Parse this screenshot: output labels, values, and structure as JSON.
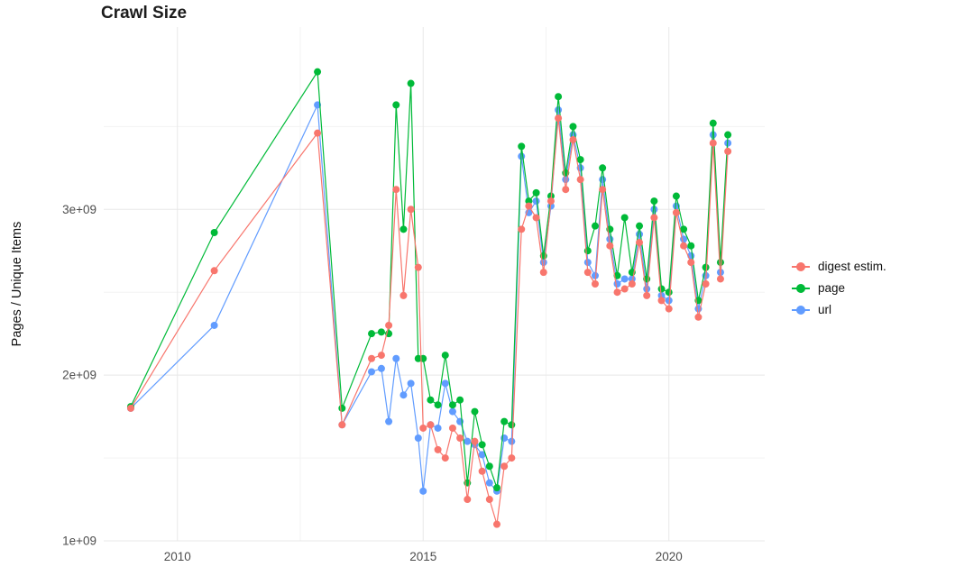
{
  "chart_data": {
    "type": "scatter",
    "title": "Crawl Size",
    "xlabel": "",
    "ylabel": "Pages / Unique Items",
    "legend_position": "right",
    "grid": true,
    "xlim": [
      2008.5,
      2021.95
    ],
    "ylim": [
      1000000000.0,
      4100000000.0
    ],
    "x_ticks": [
      {
        "value": 2010,
        "label": "2010"
      },
      {
        "value": 2015,
        "label": "2015"
      },
      {
        "value": 2020,
        "label": "2020"
      }
    ],
    "y_ticks": [
      {
        "value": 1000000000.0,
        "label": "1e+09"
      },
      {
        "value": 2000000000.0,
        "label": "2e+09"
      },
      {
        "value": 3000000000.0,
        "label": "3e+09"
      }
    ],
    "x_minor": [
      2012.5,
      2017.5
    ],
    "y_minor": [
      1500000000.0,
      2500000000.0,
      3500000000.0
    ],
    "grid_major_color": "#e8e8e8",
    "grid_minor_color": "#f3f3f3",
    "axis_text_color": "#4d4d4d",
    "x": [
      2009.05,
      2010.75,
      2012.85,
      2013.35,
      2013.95,
      2014.15,
      2014.3,
      2014.45,
      2014.6,
      2014.75,
      2014.9,
      2015.0,
      2015.15,
      2015.3,
      2015.45,
      2015.6,
      2015.75,
      2015.9,
      2016.05,
      2016.2,
      2016.35,
      2016.5,
      2016.65,
      2016.8,
      2017.0,
      2017.15,
      2017.3,
      2017.45,
      2017.6,
      2017.75,
      2017.9,
      2018.05,
      2018.2,
      2018.35,
      2018.5,
      2018.65,
      2018.8,
      2018.95,
      2019.1,
      2019.25,
      2019.4,
      2019.55,
      2019.7,
      2019.85,
      2020.0,
      2020.15,
      2020.3,
      2020.45,
      2020.6,
      2020.75,
      2020.9,
      2021.05,
      2021.2
    ],
    "series": [
      {
        "name": "digest estim.",
        "color": "#F8766D",
        "values": [
          1800000000.0,
          2630000000.0,
          3460000000.0,
          1700000000.0,
          2100000000.0,
          2120000000.0,
          2300000000.0,
          3120000000.0,
          2480000000.0,
          3000000000.0,
          2650000000.0,
          1680000000.0,
          1700000000.0,
          1550000000.0,
          1500000000.0,
          1680000000.0,
          1620000000.0,
          1250000000.0,
          1600000000.0,
          1420000000.0,
          1250000000.0,
          1100000000.0,
          1450000000.0,
          1500000000.0,
          2880000000.0,
          3020000000.0,
          2950000000.0,
          2620000000.0,
          3050000000.0,
          3550000000.0,
          3120000000.0,
          3420000000.0,
          3180000000.0,
          2620000000.0,
          2550000000.0,
          3120000000.0,
          2780000000.0,
          2500000000.0,
          2520000000.0,
          2550000000.0,
          2800000000.0,
          2480000000.0,
          2950000000.0,
          2450000000.0,
          2400000000.0,
          2980000000.0,
          2780000000.0,
          2680000000.0,
          2350000000.0,
          2550000000.0,
          3400000000.0,
          2580000000.0,
          3350000000.0
        ]
      },
      {
        "name": "page",
        "color": "#00BA38",
        "values": [
          1810000000.0,
          2860000000.0,
          3830000000.0,
          1800000000.0,
          2250000000.0,
          2260000000.0,
          2250000000.0,
          3630000000.0,
          2880000000.0,
          3760000000.0,
          2100000000.0,
          2100000000.0,
          1850000000.0,
          1820000000.0,
          2120000000.0,
          1820000000.0,
          1850000000.0,
          1350000000.0,
          1780000000.0,
          1580000000.0,
          1450000000.0,
          1320000000.0,
          1720000000.0,
          1700000000.0,
          3380000000.0,
          3050000000.0,
          3100000000.0,
          2720000000.0,
          3080000000.0,
          3680000000.0,
          3220000000.0,
          3500000000.0,
          3300000000.0,
          2750000000.0,
          2900000000.0,
          3250000000.0,
          2880000000.0,
          2600000000.0,
          2950000000.0,
          2620000000.0,
          2900000000.0,
          2580000000.0,
          3050000000.0,
          2520000000.0,
          2500000000.0,
          3080000000.0,
          2880000000.0,
          2780000000.0,
          2450000000.0,
          2650000000.0,
          3520000000.0,
          2680000000.0,
          3450000000.0
        ]
      },
      {
        "name": "url",
        "color": "#619CFF",
        "values": [
          1800000000.0,
          2300000000.0,
          3630000000.0,
          1700000000.0,
          2020000000.0,
          2040000000.0,
          1720000000.0,
          2100000000.0,
          1880000000.0,
          1950000000.0,
          1620000000.0,
          1300000000.0,
          1700000000.0,
          1680000000.0,
          1950000000.0,
          1780000000.0,
          1720000000.0,
          1600000000.0,
          1580000000.0,
          1520000000.0,
          1350000000.0,
          1300000000.0,
          1620000000.0,
          1600000000.0,
          3320000000.0,
          2980000000.0,
          3050000000.0,
          2680000000.0,
          3020000000.0,
          3600000000.0,
          3180000000.0,
          3450000000.0,
          3250000000.0,
          2680000000.0,
          2600000000.0,
          3180000000.0,
          2820000000.0,
          2550000000.0,
          2580000000.0,
          2580000000.0,
          2850000000.0,
          2520000000.0,
          3000000000.0,
          2480000000.0,
          2450000000.0,
          3020000000.0,
          2820000000.0,
          2720000000.0,
          2400000000.0,
          2600000000.0,
          3450000000.0,
          2620000000.0,
          3400000000.0
        ]
      }
    ]
  }
}
